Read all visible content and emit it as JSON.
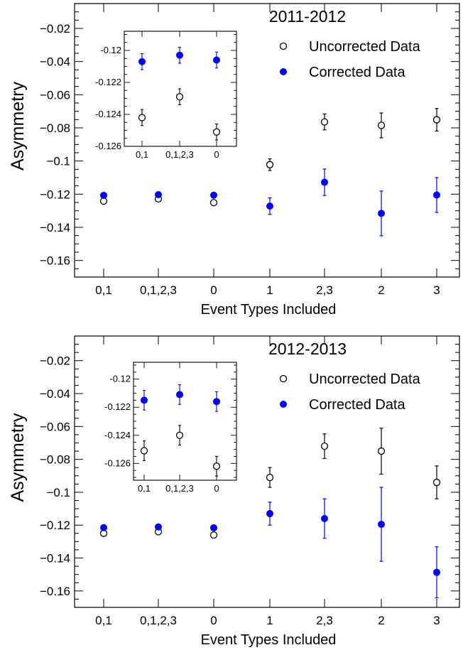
{
  "chart_data": [
    {
      "type": "scatter",
      "title": "2011-2012",
      "xlabel": "Event Types Included",
      "ylabel": "Asymmetry",
      "categories": [
        "0,1",
        "0,1,2,3",
        "0",
        "1",
        "2,3",
        "2",
        "3"
      ],
      "ylim": [
        -0.17,
        -0.005
      ],
      "yticks": [
        "−0.02",
        "−0.04",
        "−0.06",
        "−0.08",
        "−0.1",
        "−0.12",
        "−0.14",
        "−0.16"
      ],
      "legend_position": "top-right",
      "series": [
        {
          "name": "Uncorrected Data",
          "color": "#000000",
          "marker": "open-circle",
          "values": [
            -0.1242,
            -0.1228,
            -0.1251,
            -0.1022,
            -0.0764,
            -0.0785,
            -0.0751
          ],
          "errors": [
            0.0015,
            0.0015,
            0.0015,
            0.0035,
            0.0048,
            0.0075,
            0.0068
          ]
        },
        {
          "name": "Corrected Data",
          "color": "#0000ff",
          "marker": "filled-circle",
          "values": [
            -0.1207,
            -0.1203,
            -0.1206,
            -0.1272,
            -0.1128,
            -0.1316,
            -0.1205
          ],
          "errors": [
            0.0015,
            0.0015,
            0.0015,
            0.005,
            0.008,
            0.0135,
            0.0105
          ]
        }
      ],
      "inset": {
        "categories": [
          "0,1",
          "0,1,2,3",
          "0"
        ],
        "ylim": [
          -0.126,
          -0.1188
        ],
        "yticks": [
          "-0.12",
          "-0.122",
          "-0.124",
          "-0.126"
        ],
        "series": [
          {
            "name": "Uncorrected Data",
            "values": [
              -0.1242,
              -0.1229,
              -0.1251
            ],
            "errors": [
              0.0005,
              0.0005,
              0.0005
            ]
          },
          {
            "name": "Corrected Data",
            "values": [
              -0.1207,
              -0.1203,
              -0.1206
            ],
            "errors": [
              0.0005,
              0.0005,
              0.0005
            ]
          }
        ]
      }
    },
    {
      "type": "scatter",
      "title": "2012-2013",
      "xlabel": "Event Types Included",
      "ylabel": "Asymmetry",
      "categories": [
        "0,1",
        "0,1,2,3",
        "0",
        "1",
        "2,3",
        "2",
        "3"
      ],
      "ylim": [
        -0.17,
        -0.005
      ],
      "yticks": [
        "−0.02",
        "−0.04",
        "−0.06",
        "−0.08",
        "−0.1",
        "−0.12",
        "−0.14",
        "−0.16"
      ],
      "legend_position": "top-right",
      "series": [
        {
          "name": "Uncorrected Data",
          "color": "#000000",
          "marker": "open-circle",
          "values": [
            -0.125,
            -0.124,
            -0.126,
            -0.091,
            -0.072,
            -0.075,
            -0.094
          ],
          "errors": [
            0.0015,
            0.0015,
            0.0015,
            0.006,
            0.0075,
            0.014,
            0.01
          ]
        },
        {
          "name": "Corrected Data",
          "color": "#0000ff",
          "marker": "filled-circle",
          "values": [
            -0.1215,
            -0.1211,
            -0.1216,
            -0.113,
            -0.116,
            -0.1195,
            -0.1487
          ],
          "errors": [
            0.0015,
            0.0015,
            0.0015,
            0.007,
            0.012,
            0.0225,
            0.0155
          ]
        }
      ],
      "inset": {
        "categories": [
          "0,1",
          "0,1,2,3",
          "0"
        ],
        "ylim": [
          -0.1272,
          -0.1188
        ],
        "yticks": [
          "-0.12",
          "-0.122",
          "-0.124",
          "-0.126"
        ],
        "series": [
          {
            "name": "Uncorrected Data",
            "values": [
              -0.1251,
              -0.124,
              -0.1262
            ],
            "errors": [
              0.0007,
              0.0007,
              0.0007
            ]
          },
          {
            "name": "Corrected Data",
            "values": [
              -0.1215,
              -0.1211,
              -0.1216
            ],
            "errors": [
              0.0007,
              0.0007,
              0.0007
            ]
          }
        ]
      }
    }
  ]
}
